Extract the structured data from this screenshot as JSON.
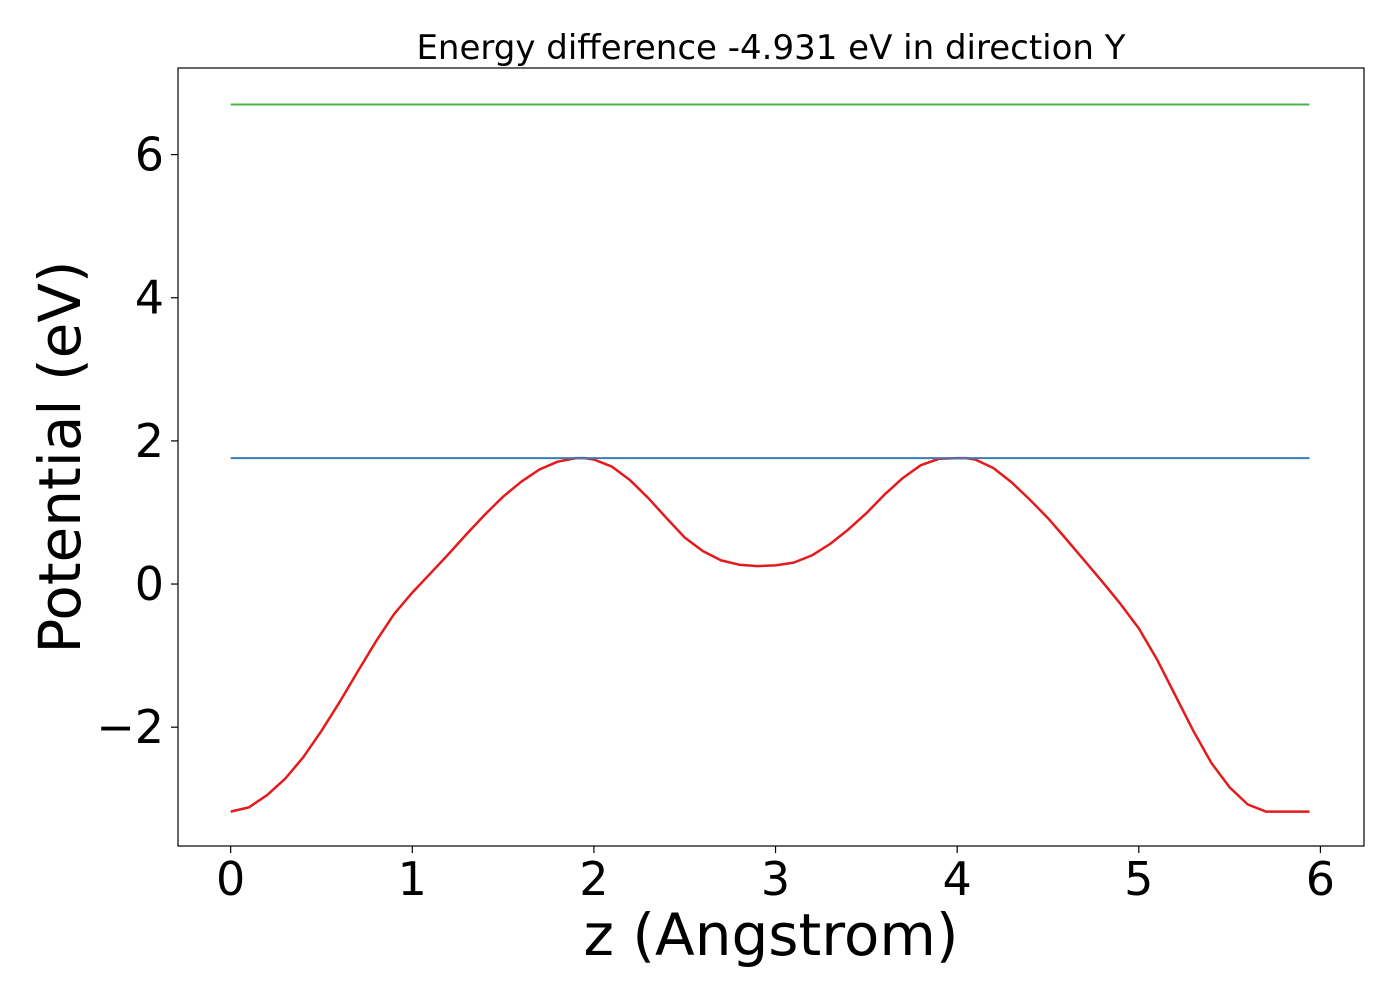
{
  "chart_data": {
    "type": "line",
    "title": "Energy difference -4.931 eV in direction Y",
    "xlabel": "z (Angstrom)",
    "ylabel": "Potential (eV)",
    "xlim": [
      -0.29,
      6.24
    ],
    "ylim": [
      -3.66,
      7.21
    ],
    "xticks": [
      0,
      1,
      2,
      3,
      4,
      5,
      6
    ],
    "xtick_labels": [
      "0",
      "1",
      "2",
      "3",
      "4",
      "5",
      "6"
    ],
    "yticks": [
      -2,
      0,
      2,
      4,
      6
    ],
    "ytick_labels": [
      "−2",
      "0",
      "2",
      "4",
      "6"
    ],
    "grid": false,
    "legend": "none",
    "series": [
      {
        "color": "#e41a1c",
        "x": [
          0.0,
          0.1,
          0.2,
          0.3,
          0.4,
          0.5,
          0.6,
          0.7,
          0.8,
          0.9,
          1.0,
          1.1,
          1.2,
          1.3,
          1.4,
          1.5,
          1.6,
          1.7,
          1.8,
          1.9,
          1.95,
          2.0,
          2.1,
          2.2,
          2.3,
          2.4,
          2.5,
          2.6,
          2.7,
          2.8,
          2.9,
          3.0,
          3.1,
          3.2,
          3.3,
          3.4,
          3.5,
          3.6,
          3.7,
          3.8,
          3.9,
          4.0,
          4.05,
          4.1,
          4.2,
          4.3,
          4.4,
          4.5,
          4.6,
          4.7,
          4.8,
          4.9,
          5.0,
          5.1,
          5.2,
          5.3,
          5.4,
          5.5,
          5.6,
          5.7,
          5.8,
          5.9,
          5.94
        ],
        "y": [
          -3.18,
          -3.12,
          -2.95,
          -2.72,
          -2.42,
          -2.05,
          -1.65,
          -1.22,
          -0.8,
          -0.42,
          -0.12,
          0.15,
          0.42,
          0.7,
          0.97,
          1.22,
          1.43,
          1.6,
          1.71,
          1.76,
          1.76,
          1.74,
          1.64,
          1.45,
          1.2,
          0.92,
          0.65,
          0.46,
          0.33,
          0.27,
          0.25,
          0.26,
          0.3,
          0.4,
          0.56,
          0.76,
          0.99,
          1.25,
          1.48,
          1.66,
          1.75,
          1.76,
          1.76,
          1.74,
          1.62,
          1.42,
          1.18,
          0.92,
          0.63,
          0.33,
          0.03,
          -0.28,
          -0.62,
          -1.05,
          -1.55,
          -2.05,
          -2.5,
          -2.84,
          -3.08,
          -3.18,
          -3.18,
          -3.18,
          -3.18
        ]
      },
      {
        "color": "#377eb8",
        "x": [
          0.0,
          5.94
        ],
        "y": [
          1.76,
          1.76
        ]
      },
      {
        "color": "#4daf4a",
        "x": [
          0.0,
          5.94
        ],
        "y": [
          6.7,
          6.7
        ]
      }
    ]
  }
}
